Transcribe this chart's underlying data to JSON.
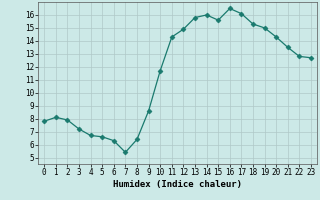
{
  "title": "",
  "xlabel": "Humidex (Indice chaleur)",
  "x": [
    0,
    1,
    2,
    3,
    4,
    5,
    6,
    7,
    8,
    9,
    10,
    11,
    12,
    13,
    14,
    15,
    16,
    17,
    18,
    19,
    20,
    21,
    22,
    23
  ],
  "y": [
    7.8,
    8.1,
    7.9,
    7.2,
    6.7,
    6.6,
    6.3,
    5.4,
    6.4,
    8.6,
    11.7,
    14.3,
    14.9,
    15.8,
    16.0,
    15.6,
    16.5,
    16.1,
    15.3,
    15.0,
    14.3,
    13.5,
    12.8,
    12.7
  ],
  "line_color": "#1a7a6e",
  "marker": "D",
  "marker_size": 2.5,
  "bg_color": "#cce9e7",
  "grid_color": "#b0c8c8",
  "ylim": [
    4.5,
    17
  ],
  "xlim": [
    -0.5,
    23.5
  ],
  "yticks": [
    5,
    6,
    7,
    8,
    9,
    10,
    11,
    12,
    13,
    14,
    15,
    16
  ],
  "xticks": [
    0,
    1,
    2,
    3,
    4,
    5,
    6,
    7,
    8,
    9,
    10,
    11,
    12,
    13,
    14,
    15,
    16,
    17,
    18,
    19,
    20,
    21,
    22,
    23
  ],
  "label_fontsize": 6.5,
  "tick_fontsize": 5.5
}
